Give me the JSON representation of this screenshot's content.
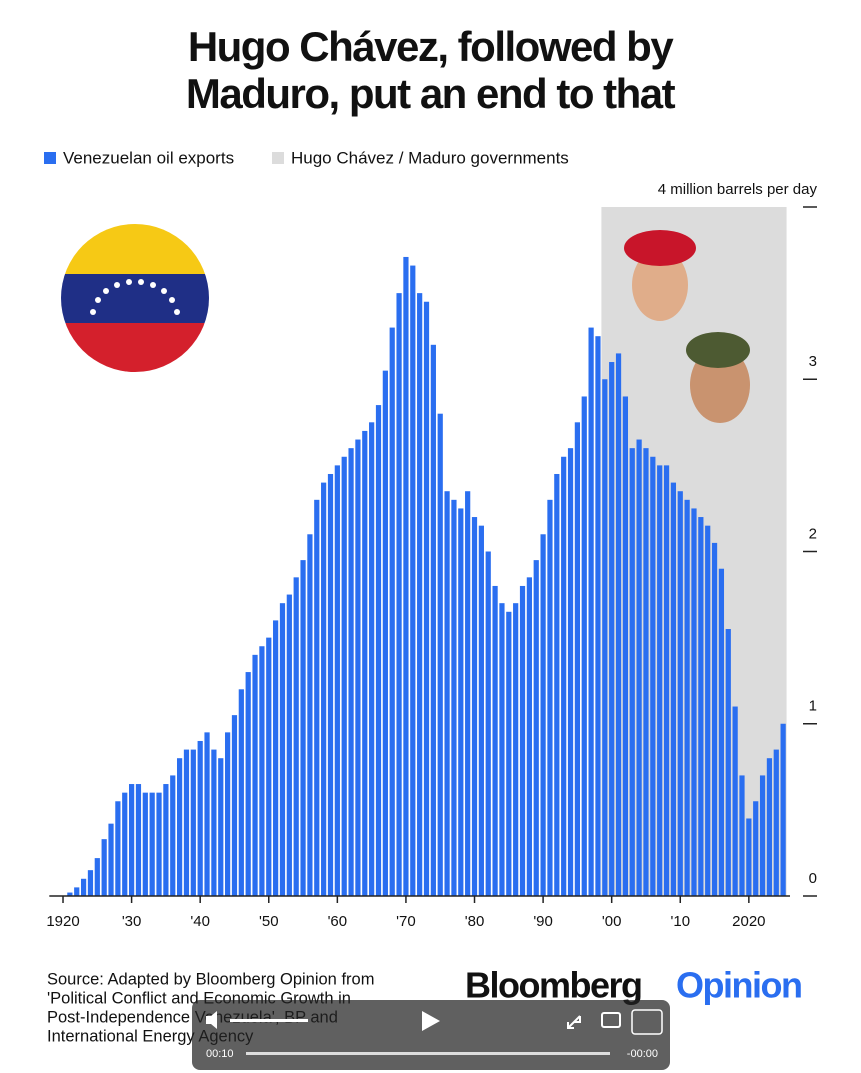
{
  "chart_data": {
    "type": "bar",
    "title": [
      "Hugo Chávez, followed by",
      "Maduro, put an end to that"
    ],
    "series": [
      {
        "name": "Venezuelan oil exports",
        "color": "#2a6ef0",
        "values": [
          0.02,
          0.05,
          0.1,
          0.15,
          0.22,
          0.33,
          0.42,
          0.55,
          0.6,
          0.65,
          0.65,
          0.6,
          0.6,
          0.6,
          0.65,
          0.7,
          0.8,
          0.85,
          0.85,
          0.9,
          0.95,
          0.85,
          0.8,
          0.95,
          1.05,
          1.2,
          1.3,
          1.4,
          1.45,
          1.5,
          1.6,
          1.7,
          1.75,
          1.85,
          1.95,
          2.1,
          2.3,
          2.4,
          2.45,
          2.5,
          2.55,
          2.6,
          2.65,
          2.7,
          2.75,
          2.85,
          3.05,
          3.3,
          3.5,
          3.71,
          3.66,
          3.5,
          3.45,
          3.2,
          2.8,
          2.35,
          2.3,
          2.25,
          2.35,
          2.2,
          2.15,
          2.0,
          1.8,
          1.7,
          1.65,
          1.7,
          1.8,
          1.85,
          1.95,
          2.1,
          2.3,
          2.45,
          2.55,
          2.6,
          2.75,
          2.9,
          3.3,
          3.25,
          3.0,
          3.1,
          3.15,
          2.9,
          2.6,
          2.65,
          2.6,
          2.55,
          2.5,
          2.5,
          2.4,
          2.35,
          2.3,
          2.25,
          2.2,
          2.15,
          2.05,
          1.9,
          1.55,
          1.1,
          0.7,
          0.45,
          0.55,
          0.7,
          0.8,
          0.85,
          1.0
        ]
      }
    ],
    "x": [
      1921,
      1922,
      1923,
      1924,
      1925,
      1926,
      1927,
      1928,
      1929,
      1930,
      1931,
      1932,
      1933,
      1934,
      1935,
      1936,
      1937,
      1938,
      1939,
      1940,
      1941,
      1942,
      1943,
      1944,
      1945,
      1946,
      1947,
      1948,
      1949,
      1950,
      1951,
      1952,
      1953,
      1954,
      1955,
      1956,
      1957,
      1958,
      1959,
      1960,
      1961,
      1962,
      1963,
      1964,
      1965,
      1966,
      1967,
      1968,
      1969,
      1970,
      1971,
      1972,
      1973,
      1974,
      1975,
      1976,
      1977,
      1978,
      1979,
      1980,
      1981,
      1982,
      1983,
      1984,
      1985,
      1986,
      1987,
      1988,
      1989,
      1990,
      1991,
      1992,
      1993,
      1994,
      1995,
      1996,
      1997,
      1998,
      1999,
      2000,
      2001,
      2002,
      2003,
      2004,
      2005,
      2006,
      2007,
      2008,
      2009,
      2010,
      2011,
      2012,
      2013,
      2014,
      2015,
      2016,
      2017,
      2018,
      2019,
      2020,
      2021,
      2022,
      2023,
      2024,
      2025
    ],
    "shaded": {
      "name": "Hugo Chávez / Maduro governments",
      "color": "#dcdcdc",
      "range": [
        1999,
        2025
      ]
    },
    "xlim": [
      1918,
      2026
    ],
    "xticks": [
      1920,
      {
        "value": 1930,
        "label": "'30"
      },
      {
        "value": 1940,
        "label": "'40"
      },
      {
        "value": 1950,
        "label": "'50"
      },
      {
        "value": 1960,
        "label": "'60"
      },
      {
        "value": 1970,
        "label": "'70"
      },
      {
        "value": 1980,
        "label": "'80"
      },
      {
        "value": 1990,
        "label": "'90"
      },
      {
        "value": 2000,
        "label": "'00"
      },
      {
        "value": 2010,
        "label": "'10"
      },
      2020
    ],
    "ylim": [
      0,
      4
    ],
    "yticks": [
      0,
      1,
      2,
      3,
      {
        "value": 4,
        "label": "4 million barrels per day"
      }
    ],
    "source": [
      "Source: Adapted by Bloomberg Opinion from",
      "'Political Conflict and Economic Growth in",
      "Post-Independence Venezuela', BP and",
      "International Energy Agency"
    ],
    "logo": [
      "Bloomberg",
      "Opinion"
    ],
    "player": {
      "elapsed": "00:10",
      "remaining": "-00:00"
    }
  }
}
